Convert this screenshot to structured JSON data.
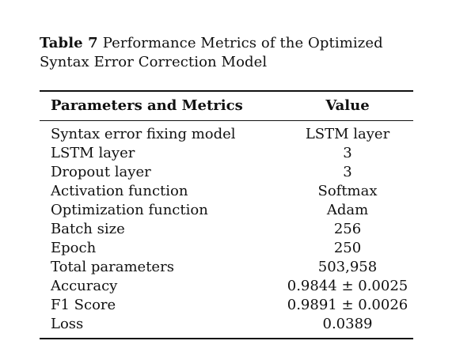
{
  "caption": {
    "label": "Table 7",
    "text": "Performance Metrics of the Optimized Syntax Error Correction Model"
  },
  "table": {
    "headers": [
      "Parameters and Metrics",
      "Value"
    ],
    "rows": [
      [
        "Syntax error fixing model",
        "LSTM layer"
      ],
      [
        "LSTM layer",
        "3"
      ],
      [
        "Dropout layer",
        "3"
      ],
      [
        "Activation function",
        "Softmax"
      ],
      [
        "Optimization function",
        "Adam"
      ],
      [
        "Batch size",
        "256"
      ],
      [
        "Epoch",
        "250"
      ],
      [
        "Total parameters",
        "503,958"
      ],
      [
        "Accuracy",
        "0.9844 ± 0.0025"
      ],
      [
        "F1 Score",
        "0.9891 ± 0.0026"
      ],
      [
        "Loss",
        "0.0389"
      ]
    ]
  }
}
